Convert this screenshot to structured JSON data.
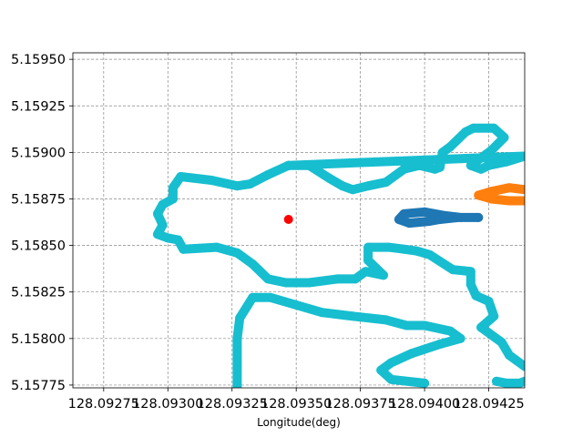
{
  "chart_data": {
    "type": "scatter",
    "title": "",
    "xlabel": "Longitude(deg)",
    "ylabel": "",
    "xlim": [
      128.09263,
      128.09439
    ],
    "ylim": [
      5.157735,
      5.159535
    ],
    "grid": true,
    "x_ticks": [
      128.09275,
      128.093,
      128.09325,
      128.0935,
      128.09375,
      128.094,
      128.09425
    ],
    "x_tick_labels": [
      "128.09275",
      "128.09300",
      "128.09325",
      "128.09350",
      "128.09375",
      "128.09400",
      "128.09425"
    ],
    "y_ticks": [
      5.15775,
      5.158,
      5.15825,
      5.1585,
      5.15875,
      5.159,
      5.15925,
      5.1595
    ],
    "y_tick_labels": [
      "5.15775",
      "5.15800",
      "5.15825",
      "5.15850",
      "5.15875",
      "5.15900",
      "5.15925",
      "5.15950"
    ],
    "series": [
      {
        "color": "#17becf",
        "style": "track",
        "closed": true,
        "points": [
          [
            128.09347,
            5.15893
          ],
          [
            128.09355,
            5.15893
          ],
          [
            128.09363,
            5.15886
          ],
          [
            128.09368,
            5.15882
          ],
          [
            128.09372,
            5.1588
          ],
          [
            128.09378,
            5.15882
          ],
          [
            128.09385,
            5.15884
          ],
          [
            128.09392,
            5.15891
          ],
          [
            128.09398,
            5.15893
          ],
          [
            128.09404,
            5.15891
          ],
          [
            128.09406,
            5.15892
          ],
          [
            128.09407,
            5.159
          ],
          [
            128.0941,
            5.15903
          ],
          [
            128.09416,
            5.15911
          ],
          [
            128.09419,
            5.15913
          ],
          [
            128.09427,
            5.15913
          ],
          [
            128.09431,
            5.15908
          ],
          [
            128.09426,
            5.15901
          ],
          [
            128.09418,
            5.15893
          ],
          [
            128.09422,
            5.15891
          ],
          [
            128.09425,
            5.15893
          ],
          [
            128.09432,
            5.15895
          ],
          [
            128.09439,
            5.15898
          ]
        ]
      },
      {
        "color": "#17becf",
        "style": "track",
        "closed": false,
        "points": [
          [
            128.09347,
            5.15893
          ],
          [
            128.09339,
            5.15888
          ],
          [
            128.09332,
            5.15883
          ],
          [
            128.09327,
            5.15882
          ],
          [
            128.09317,
            5.15885
          ],
          [
            128.09305,
            5.15887
          ],
          [
            128.09302,
            5.15881
          ],
          [
            128.09302,
            5.15875
          ],
          [
            128.09298,
            5.15872
          ],
          [
            128.09296,
            5.15867
          ],
          [
            128.09298,
            5.15861
          ],
          [
            128.09296,
            5.15856
          ],
          [
            128.093,
            5.15854
          ],
          [
            128.09304,
            5.15853
          ],
          [
            128.09306,
            5.15848
          ],
          [
            128.09319,
            5.15849
          ],
          [
            128.09327,
            5.15846
          ],
          [
            128.09333,
            5.1584
          ],
          [
            128.09339,
            5.15832
          ],
          [
            128.09346,
            5.1583
          ],
          [
            128.09355,
            5.1583
          ],
          [
            128.09366,
            5.15832
          ],
          [
            128.09373,
            5.15832
          ],
          [
            128.09377,
            5.15836
          ],
          [
            128.09384,
            5.15834
          ],
          [
            128.09378,
            5.15842
          ],
          [
            128.09378,
            5.15849
          ],
          [
            128.09386,
            5.15849
          ],
          [
            128.09392,
            5.15848
          ],
          [
            128.09397,
            5.15847
          ],
          [
            128.09402,
            5.15845
          ],
          [
            128.09411,
            5.15837
          ],
          [
            128.09418,
            5.15836
          ],
          [
            128.09418,
            5.15829
          ],
          [
            128.0942,
            5.15823
          ],
          [
            128.09425,
            5.1582
          ],
          [
            128.09427,
            5.15812
          ],
          [
            128.09422,
            5.15806
          ],
          [
            128.0943,
            5.15798
          ],
          [
            128.09433,
            5.15791
          ],
          [
            128.09439,
            5.15785
          ]
        ]
      },
      {
        "color": "#17becf",
        "style": "track",
        "closed": false,
        "points": [
          [
            128.09327,
            5.15773
          ],
          [
            128.09327,
            5.15785
          ],
          [
            128.09327,
            5.158
          ],
          [
            128.09328,
            5.15811
          ],
          [
            128.09333,
            5.15822
          ],
          [
            128.0934,
            5.15822
          ],
          [
            128.0935,
            5.15818
          ],
          [
            128.0936,
            5.15814
          ],
          [
            128.09372,
            5.15812
          ],
          [
            128.09385,
            5.1581
          ],
          [
            128.09393,
            5.15807
          ],
          [
            128.094,
            5.15807
          ],
          [
            128.0941,
            5.15804
          ],
          [
            128.09414,
            5.158
          ],
          [
            128.09406,
            5.15797
          ],
          [
            128.09395,
            5.15792
          ],
          [
            128.09387,
            5.15787
          ],
          [
            128.09383,
            5.15783
          ],
          [
            128.09387,
            5.15778
          ],
          [
            128.094,
            5.15776
          ]
        ]
      },
      {
        "color": "#17becf",
        "style": "track",
        "closed": false,
        "points": [
          [
            128.09428,
            5.15777
          ],
          [
            128.09432,
            5.15776
          ],
          [
            128.09437,
            5.15776
          ],
          [
            128.09439,
            5.15777
          ]
        ]
      },
      {
        "color": "#1f77b4",
        "style": "track",
        "closed": false,
        "points": [
          [
            128.09421,
            5.15865
          ],
          [
            128.09414,
            5.15865
          ],
          [
            128.09408,
            5.15866
          ],
          [
            128.094,
            5.15868
          ],
          [
            128.09392,
            5.15867
          ],
          [
            128.0939,
            5.15864
          ],
          [
            128.09394,
            5.15862
          ],
          [
            128.09402,
            5.15863
          ],
          [
            128.09406,
            5.15864
          ],
          [
            128.09413,
            5.15865
          ]
        ]
      },
      {
        "color": "#ff7f0e",
        "style": "track",
        "closed": false,
        "points": [
          [
            128.09439,
            5.1588
          ],
          [
            128.09433,
            5.15881
          ],
          [
            128.09426,
            5.15879
          ],
          [
            128.09421,
            5.15877
          ],
          [
            128.09426,
            5.15875
          ],
          [
            128.09433,
            5.15874
          ],
          [
            128.09439,
            5.15874
          ]
        ]
      },
      {
        "color": "#ff0000",
        "style": "point",
        "closed": false,
        "points": [
          [
            128.09347,
            5.15864
          ]
        ]
      }
    ]
  }
}
